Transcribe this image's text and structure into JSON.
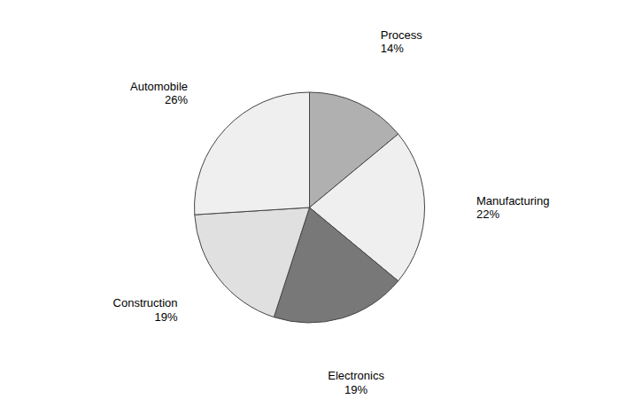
{
  "chart_data": {
    "type": "pie",
    "categories": [
      "Process",
      "Manufacturing",
      "Electronics",
      "Construction",
      "Automobile"
    ],
    "values": [
      14,
      22,
      19,
      19,
      26
    ],
    "value_labels": [
      "14%",
      "22%",
      "19%",
      "19%",
      "26%"
    ],
    "colors": [
      "#b0b0b0",
      "#efefef",
      "#787878",
      "#e0e0e0",
      "#efefef"
    ],
    "data_labels": true
  }
}
